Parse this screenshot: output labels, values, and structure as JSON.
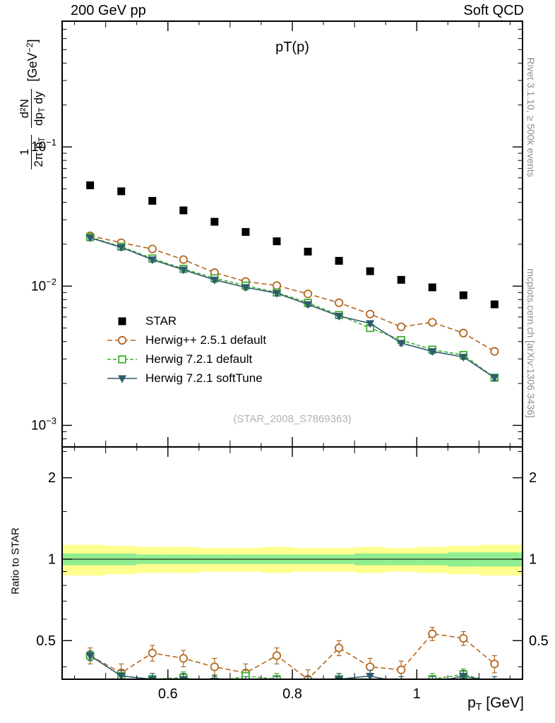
{
  "header": {
    "left": "200 GeV pp",
    "right": "Soft QCD"
  },
  "side_notes": {
    "top": "Rivet 3.1.10, ≥ 500k events",
    "bottom": "mcplots.cern.ch [arXiv:1306.3436]"
  },
  "main_panel": {
    "title": "pT(p)",
    "watermark": "(STAR_2008_S7869363)"
  },
  "axes": {
    "x_title": {
      "base": "p",
      "sub": "T",
      "unit": " [GeV]"
    },
    "y_title_ratio": "Ratio to STAR",
    "y_title_main": {
      "frac1_num": "1",
      "frac1_den": "2π p",
      "frac1_den_sub": "T",
      "frac2_num": "d²N",
      "frac2_den": "dp",
      "frac2_den_sub": "T",
      "frac2_den_rest": " dy",
      "unit_open": "[GeV",
      "unit_sup": "−2",
      "unit_close": "]"
    }
  },
  "chart_data": [
    {
      "type": "line",
      "panel": "main",
      "title": "pT(p)",
      "xlabel": "p_T [GeV]",
      "ylabel": "1/(2π p_T) d²N/(dp_T dy) [GeV^−2]",
      "xlim": [
        0.43,
        1.17
      ],
      "ylim": [
        0.0007,
        0.8
      ],
      "yscale": "log",
      "grid": false,
      "legend_position": "center-left",
      "x_major_ticks": [
        {
          "value": 0.6,
          "label": "0.6"
        },
        {
          "value": 0.8,
          "label": "0.8"
        },
        {
          "value": 1,
          "label": "1"
        }
      ],
      "y_major_ticks": [
        {
          "value": 0.1,
          "base": "10",
          "exp": "−1"
        },
        {
          "value": 0.01,
          "base": "10",
          "exp": "−2"
        },
        {
          "value": 0.001,
          "base": "10",
          "exp": "−3"
        }
      ],
      "x": [
        0.475,
        0.525,
        0.575,
        0.625,
        0.675,
        0.725,
        0.775,
        0.825,
        0.875,
        0.925,
        0.975,
        1.025,
        1.075,
        1.125
      ],
      "series": [
        {
          "name": "STAR",
          "color": "#000000",
          "marker": "filled-square",
          "line": "none",
          "values": [
            0.053,
            0.048,
            0.041,
            0.035,
            0.029,
            0.0245,
            0.021,
            0.0177,
            0.0152,
            0.0128,
            0.0111,
            0.0098,
            0.0086,
            0.0074
          ]
        },
        {
          "name": "Herwig++ 2.5.1 default",
          "color": "#b5651d",
          "marker": "open-circle",
          "line": "dashed",
          "dash": "7,4",
          "values": [
            0.023,
            0.0205,
            0.0185,
            0.0155,
            0.0125,
            0.0108,
            0.0101,
            0.0088,
            0.0076,
            0.0063,
            0.0051,
            0.0055,
            0.0046,
            0.0034
          ],
          "yerr_rel": 0.05
        },
        {
          "name": "Herwig 7.2.1 default",
          "color": "#3fae2e",
          "marker": "open-square",
          "line": "dashed",
          "dash": "5,3",
          "values": [
            0.0225,
            0.0192,
            0.0158,
            0.0133,
            0.0114,
            0.0101,
            0.009,
            0.0076,
            0.0062,
            0.005,
            0.0041,
            0.0035,
            0.0032,
            0.0022
          ],
          "yerr_rel": 0.04
        },
        {
          "name": "Herwig 7.2.1 softTune",
          "color": "#2e5b6e",
          "marker": "filled-triangle-down",
          "line": "solid",
          "values": [
            0.0223,
            0.019,
            0.0155,
            0.0131,
            0.0111,
            0.0098,
            0.0089,
            0.0074,
            0.0061,
            0.0054,
            0.0039,
            0.0034,
            0.0031,
            0.0022
          ],
          "yerr_rel": 0.04
        }
      ]
    },
    {
      "type": "ratio",
      "panel": "ratio",
      "ylabel": "Ratio to STAR",
      "ylim": [
        0.36,
        2.6
      ],
      "yscale": "log",
      "y_major_ticks": [
        {
          "value": 2,
          "label": "2"
        },
        {
          "value": 1,
          "label": "1"
        },
        {
          "value": 0.5,
          "label": "0.5"
        }
      ],
      "y_minor_ticks": [
        0.4,
        0.6,
        0.7,
        0.8,
        0.9,
        1.5,
        2.5
      ],
      "bands": [
        {
          "name": "data-uncertainty-band-yellow",
          "color": "#ffff8f",
          "lo": [
            0.87,
            0.88,
            0.89,
            0.89,
            0.9,
            0.9,
            0.89,
            0.9,
            0.9,
            0.89,
            0.9,
            0.89,
            0.88,
            0.87
          ],
          "hi": [
            1.13,
            1.12,
            1.11,
            1.11,
            1.1,
            1.1,
            1.11,
            1.1,
            1.1,
            1.11,
            1.1,
            1.11,
            1.12,
            1.13
          ]
        },
        {
          "name": "data-uncertainty-band-green",
          "color": "#90ee90",
          "lo": [
            0.95,
            0.95,
            0.96,
            0.96,
            0.96,
            0.96,
            0.96,
            0.96,
            0.96,
            0.95,
            0.95,
            0.95,
            0.94,
            0.94
          ],
          "hi": [
            1.05,
            1.05,
            1.04,
            1.04,
            1.04,
            1.04,
            1.04,
            1.04,
            1.04,
            1.05,
            1.05,
            1.05,
            1.06,
            1.06
          ]
        }
      ],
      "series": [
        {
          "name": "Herwig++ 2.5.1 default",
          "color": "#b5651d",
          "marker": "open-circle",
          "line": "dashed",
          "dash": "7,4",
          "values": [
            0.44,
            0.38,
            0.45,
            0.43,
            0.4,
            0.38,
            0.44,
            0.36,
            0.47,
            0.4,
            0.39,
            0.53,
            0.51,
            0.41
          ],
          "yerr_abs": 0.03
        },
        {
          "name": "Herwig 7.2.1 default",
          "color": "#3fae2e",
          "marker": "open-square",
          "line": "dashed",
          "dash": "5,3",
          "values": [
            0.44,
            0.37,
            0.36,
            0.365,
            0.35,
            0.37,
            0.36,
            0.35,
            0.36,
            0.35,
            0.35,
            0.36,
            0.375,
            0.35
          ],
          "yerr_abs": 0.018
        },
        {
          "name": "Herwig 7.2.1 softTune",
          "color": "#2e5b6e",
          "marker": "filled-triangle-down",
          "line": "solid",
          "values": [
            0.44,
            0.37,
            0.36,
            0.36,
            0.355,
            0.35,
            0.35,
            0.35,
            0.36,
            0.37,
            0.35,
            0.35,
            0.37,
            0.35
          ],
          "yerr_abs": 0.018
        }
      ]
    }
  ]
}
